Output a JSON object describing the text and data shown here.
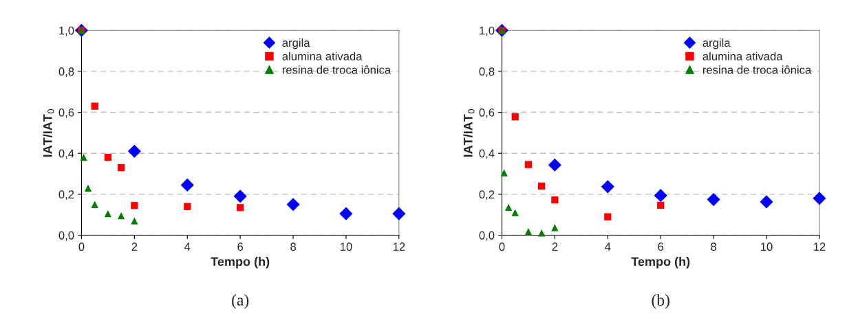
{
  "chart_data": [
    {
      "type": "scatter",
      "xlabel": "Tempo (h)",
      "ylabel": "IAT/IAT$_{0}$",
      "annotations": [
        "(a)"
      ],
      "legend": "top right",
      "grid": "y",
      "xlim": [
        0,
        12
      ],
      "xticks": [
        0,
        2,
        4,
        6,
        8,
        10,
        12
      ],
      "ylim": [
        0,
        1
      ],
      "yticks": [
        {
          "value": 0,
          "label": "0,0"
        },
        {
          "value": 0.2,
          "label": "0,2"
        },
        {
          "value": 0.4,
          "label": "0,4"
        },
        {
          "value": 0.6,
          "label": "0,6"
        },
        {
          "value": 0.8,
          "label": "0,8"
        },
        {
          "value": 1,
          "label": "1,0"
        }
      ],
      "series": [
        {
          "name": "argila",
          "color": "#0000ff",
          "marker": "diamond",
          "x": [
            0,
            2,
            4,
            6,
            8,
            10,
            12
          ],
          "values": [
            1.0,
            0.41,
            0.245,
            0.19,
            0.15,
            0.105,
            0.105
          ]
        },
        {
          "name": "alumina ativada",
          "color": "#ff0000",
          "marker": "square",
          "x": [
            0,
            0.5,
            1,
            1.5,
            2,
            4,
            6
          ],
          "values": [
            1.0,
            0.63,
            0.38,
            0.33,
            0.145,
            0.14,
            0.135
          ]
        },
        {
          "name": "resina de troca iônica",
          "color": "#008000",
          "marker": "triangle",
          "x": [
            0,
            0.083,
            0.25,
            0.5,
            1,
            1.5,
            2
          ],
          "values": [
            1.0,
            0.38,
            0.23,
            0.15,
            0.105,
            0.095,
            0.07
          ]
        }
      ]
    },
    {
      "type": "scatter",
      "xlabel": "Tempo (h)",
      "ylabel": "IAT/IAT$_{0}$",
      "annotations": [
        "(b)"
      ],
      "legend": "top right",
      "grid": "y",
      "xlim": [
        0,
        12
      ],
      "xticks": [
        0,
        2,
        4,
        6,
        8,
        10,
        12
      ],
      "ylim": [
        0,
        1
      ],
      "yticks": [
        {
          "value": 0,
          "label": "0,0"
        },
        {
          "value": 0.2,
          "label": "0,2"
        },
        {
          "value": 0.4,
          "label": "0,4"
        },
        {
          "value": 0.6,
          "label": "0,6"
        },
        {
          "value": 0.8,
          "label": "0,8"
        },
        {
          "value": 1,
          "label": "1,0"
        }
      ],
      "series": [
        {
          "name": "argila",
          "color": "#0000ff",
          "marker": "diamond",
          "x": [
            0,
            2,
            4,
            6,
            8,
            10,
            12
          ],
          "values": [
            1.0,
            0.343,
            0.237,
            0.194,
            0.174,
            0.163,
            0.18
          ]
        },
        {
          "name": "alumina ativada",
          "color": "#ff0000",
          "marker": "square",
          "x": [
            0,
            0.5,
            1,
            1.5,
            2,
            4,
            6
          ],
          "values": [
            1.0,
            0.578,
            0.345,
            0.24,
            0.172,
            0.09,
            0.146
          ]
        },
        {
          "name": "resina de troca iônica",
          "color": "#008000",
          "marker": "triangle",
          "x": [
            0,
            0.083,
            0.25,
            0.5,
            1,
            1.5,
            2
          ],
          "values": [
            1.0,
            0.305,
            0.136,
            0.11,
            0.018,
            0.011,
            0.037
          ]
        }
      ]
    }
  ]
}
